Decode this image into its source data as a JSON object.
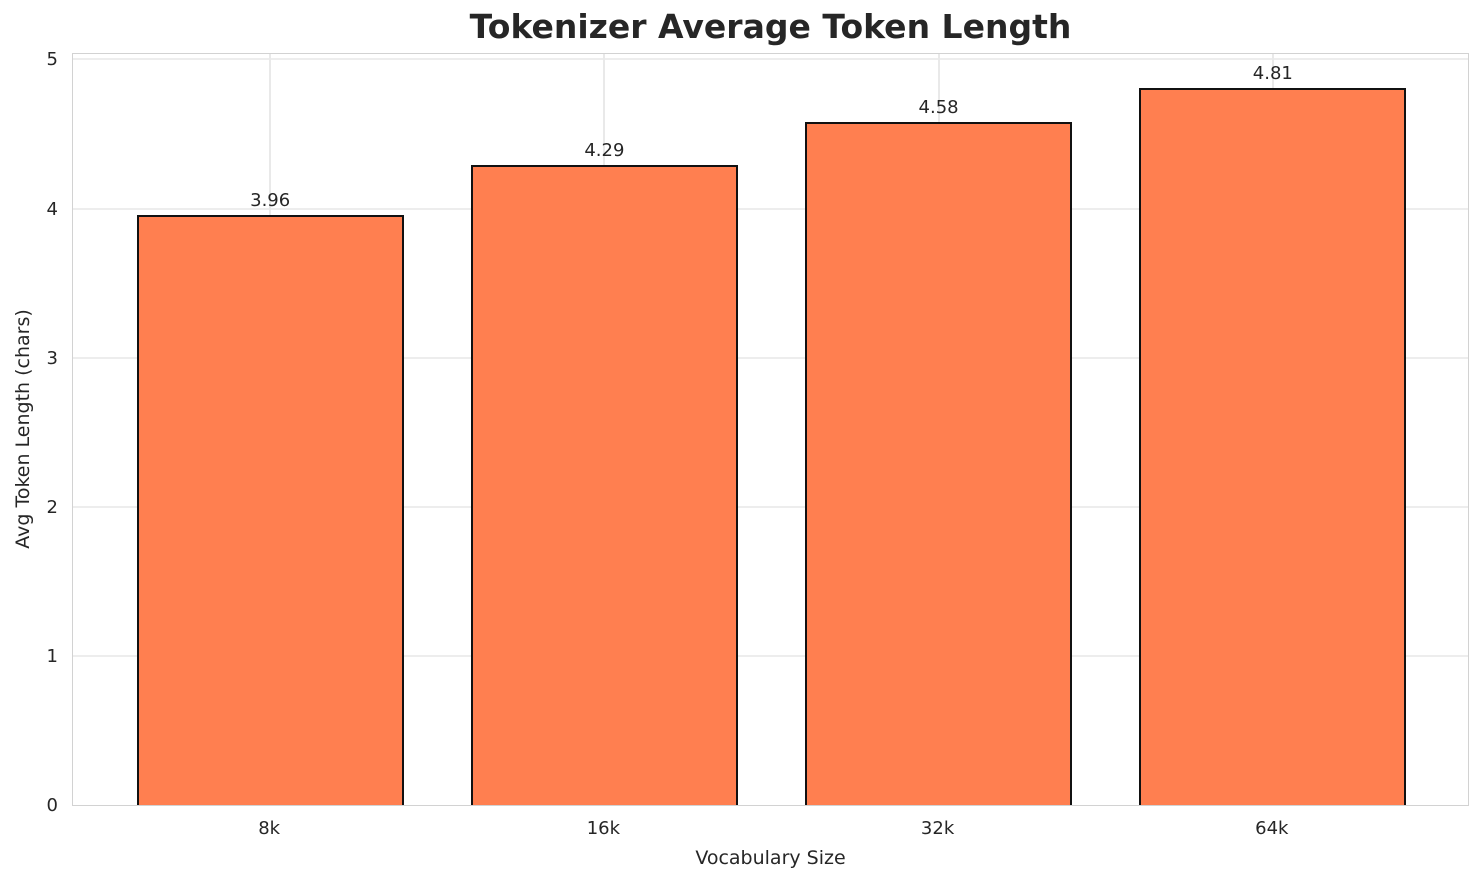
{
  "chart_data": {
    "type": "bar",
    "title": "Tokenizer Average Token Length",
    "xlabel": "Vocabulary Size",
    "ylabel": "Avg Token Length (chars)",
    "categories": [
      "8k",
      "16k",
      "32k",
      "64k"
    ],
    "values": [
      3.96,
      4.29,
      4.58,
      4.81
    ],
    "bar_labels": [
      "3.96",
      "4.29",
      "4.58",
      "4.81"
    ],
    "yticks": [
      0,
      1,
      2,
      3,
      4,
      5
    ],
    "ylim": [
      0,
      5.05
    ],
    "grid": true,
    "legend_position": "none",
    "bar_color": "#ff7f50",
    "bar_edge_color": "#111111",
    "grid_color": "#ededed",
    "spine_color": "#d2d2d2",
    "text_color": "#262626",
    "background_color": "#ffffff"
  }
}
